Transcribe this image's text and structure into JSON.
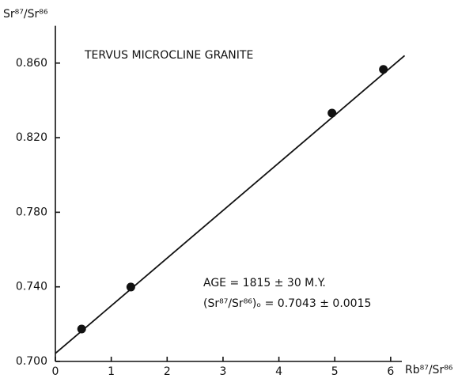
{
  "chart_data": {
    "type": "scatter",
    "title": "TERVUS MICROCLINE GRANITE",
    "x_label": "Rb⁸⁷/Sr⁸⁶",
    "y_label": "Sr⁸⁷/Sr⁸⁶",
    "annotations": [
      "AGE = 1815 ± 30 M.Y.",
      "(Sr⁸⁷/Sr⁸⁶)ₒ = 0.7043 ± 0.0015"
    ],
    "points": {
      "x": [
        0.47,
        1.35,
        4.95,
        5.87
      ],
      "y": [
        0.7174,
        0.7399,
        0.8332,
        0.8566
      ],
      "color": "#111111"
    },
    "fit_line": {
      "x": [
        0,
        6.25
      ],
      "y": [
        0.7043,
        0.864
      ],
      "color": "#111111"
    },
    "xlim": [
      0,
      6.2
    ],
    "xticks": [
      0,
      1,
      2,
      3,
      4,
      5,
      6
    ],
    "ylim": [
      0.7,
      0.88
    ],
    "yticks": [
      {
        "value": 0.7,
        "label": "0.700"
      },
      {
        "value": 0.74,
        "label": "0.740"
      },
      {
        "value": 0.78,
        "label": "0.780"
      },
      {
        "value": 0.82,
        "label": "0.820"
      },
      {
        "value": 0.86,
        "label": "0.860"
      }
    ],
    "grid": false
  }
}
